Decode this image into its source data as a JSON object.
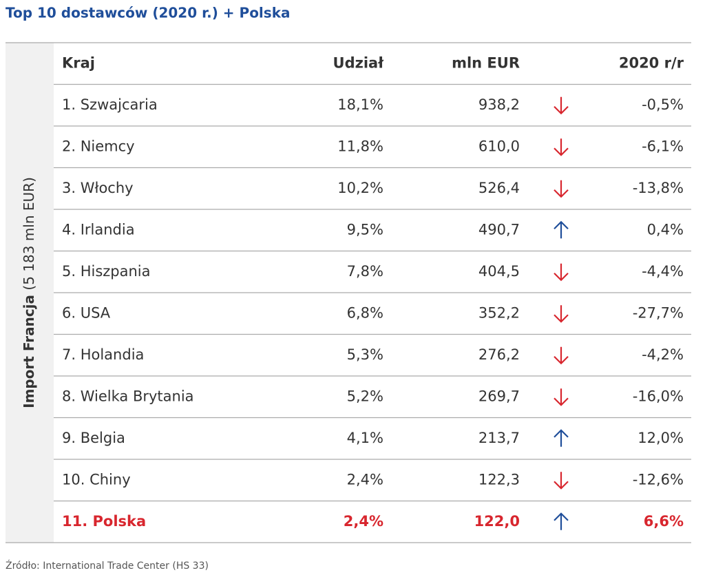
{
  "title": "Top 10 dostawców (2020 r.) + Polska",
  "side_label": {
    "bold": "Import Francja",
    "normal": "(5 183 mln EUR)"
  },
  "table": {
    "header": [
      "Kraj",
      "Udział",
      "mln EUR",
      "2020 r/r"
    ],
    "rows": [
      [
        "1. Szwajcaria",
        "18,1%",
        "938,2",
        "-0,5%"
      ],
      [
        "2. Niemcy",
        "11,8%",
        "610,0",
        "-6,1%"
      ],
      [
        "3. Włochy",
        "10,2%",
        "526,4",
        "-13,8%"
      ],
      [
        "4. Irlandia",
        "9,5%",
        "490,7",
        "0,4%"
      ],
      [
        "5. Hiszpania",
        "7,8%",
        "404,5",
        "-4,4%"
      ],
      [
        "6. USA",
        "6,8%",
        "352,2",
        "-27,7%"
      ],
      [
        "7. Holandia",
        "5,3%",
        "276,2",
        "-4,2%"
      ],
      [
        "8. Wielka Brytania",
        "5,2%",
        "269,7",
        "-16,0%"
      ],
      [
        "9. Belgia",
        "4,1%",
        "213,7",
        "12,0%"
      ],
      [
        "10. Chiny",
        "2,4%",
        "122,3",
        "-12,6%"
      ],
      [
        "11. Polska",
        "2,4%",
        "122,0",
        "6,6%"
      ]
    ],
    "highlight_row": 10,
    "highlight_color": "#d8262e",
    "up_color": "#1f4e9a",
    "down_color": "#d8262e"
  },
  "source": "Źródło: International Trade Center (HS 33)"
}
